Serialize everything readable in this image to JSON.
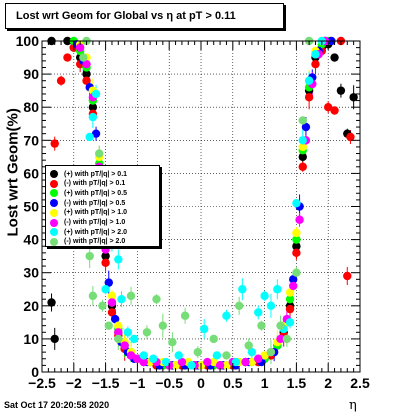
{
  "title": "Lost wrt Geom for Global vs  η at pT > 0.11",
  "ylabel": "Lost wrt Geom(%)",
  "xlabel": "η",
  "datestamp": "Sat Oct 17 20:20:58 2020",
  "chart_data": {
    "type": "scatter",
    "xlim": [
      -2.5,
      2.5
    ],
    "ylim": [
      0,
      100
    ],
    "x_ticks": [
      "−2.5",
      "−2",
      "−1.5",
      "−1",
      "−0.5",
      "0",
      "0.5",
      "1",
      "1.5",
      "2",
      "2.5"
    ],
    "y_ticks": [
      "0",
      "10",
      "20",
      "30",
      "40",
      "50",
      "60",
      "70",
      "80",
      "90",
      "100"
    ],
    "grid": true,
    "legend_position": "left-middle",
    "series": [
      {
        "name": "(+) with pT/|q| > 0.1",
        "color": "#000000",
        "points": [
          [
            -2.35,
            100
          ],
          [
            -2.3,
            10
          ],
          [
            -2.35,
            21
          ],
          [
            -2.1,
            100
          ],
          [
            -2.0,
            98
          ],
          [
            -1.9,
            95
          ],
          [
            -1.8,
            90
          ],
          [
            -1.7,
            80
          ],
          [
            -1.6,
            60
          ],
          [
            -1.5,
            35
          ],
          [
            -1.4,
            20
          ],
          [
            -1.3,
            12
          ],
          [
            -1.2,
            7
          ],
          [
            -1.1,
            5
          ],
          [
            -1.0,
            4
          ],
          [
            -0.9,
            3
          ],
          [
            -0.8,
            3
          ],
          [
            -0.7,
            2
          ],
          [
            -0.6,
            2
          ],
          [
            -0.5,
            2
          ],
          [
            -0.3,
            2
          ],
          [
            -0.1,
            2
          ],
          [
            0.1,
            2
          ],
          [
            0.3,
            2
          ],
          [
            0.5,
            2
          ],
          [
            0.7,
            3
          ],
          [
            0.9,
            3
          ],
          [
            1.0,
            4
          ],
          [
            1.1,
            5
          ],
          [
            1.2,
            8
          ],
          [
            1.3,
            12
          ],
          [
            1.4,
            20
          ],
          [
            1.5,
            38
          ],
          [
            1.6,
            65
          ],
          [
            1.7,
            85
          ],
          [
            1.8,
            95
          ],
          [
            1.9,
            98
          ],
          [
            2.0,
            99
          ],
          [
            2.1,
            95
          ],
          [
            2.2,
            85
          ],
          [
            2.3,
            72
          ],
          [
            2.4,
            83
          ]
        ]
      },
      {
        "name": "(-) with pT/|q| > 0.1",
        "color": "#ff0000",
        "points": [
          [
            -2.3,
            69
          ],
          [
            -2.2,
            88
          ],
          [
            -2.1,
            95
          ],
          [
            -2.0,
            98
          ],
          [
            -1.9,
            93
          ],
          [
            -1.8,
            88
          ],
          [
            -1.7,
            78
          ],
          [
            -1.6,
            58
          ],
          [
            -1.5,
            33
          ],
          [
            -1.4,
            18
          ],
          [
            -1.3,
            11
          ],
          [
            -1.2,
            7
          ],
          [
            -1.1,
            5
          ],
          [
            -1.0,
            4
          ],
          [
            -0.9,
            3
          ],
          [
            -0.7,
            2
          ],
          [
            -0.5,
            2
          ],
          [
            -0.3,
            2
          ],
          [
            -0.1,
            2
          ],
          [
            0.1,
            2
          ],
          [
            0.3,
            2
          ],
          [
            0.5,
            2
          ],
          [
            0.7,
            3
          ],
          [
            0.9,
            3
          ],
          [
            1.1,
            5
          ],
          [
            1.3,
            11
          ],
          [
            1.4,
            19
          ],
          [
            1.5,
            36
          ],
          [
            1.6,
            62
          ],
          [
            1.7,
            83
          ],
          [
            1.8,
            93
          ],
          [
            1.9,
            97
          ],
          [
            2.0,
            80
          ],
          [
            2.1,
            79
          ],
          [
            2.2,
            100
          ],
          [
            2.3,
            29
          ],
          [
            2.35,
            71
          ]
        ]
      },
      {
        "name": "(+) with pT/|q| > 0.5",
        "color": "#00ff00",
        "points": [
          [
            -2.0,
            100
          ],
          [
            -1.9,
            97
          ],
          [
            -1.8,
            92
          ],
          [
            -1.7,
            82
          ],
          [
            -1.6,
            63
          ],
          [
            -1.5,
            38
          ],
          [
            -1.4,
            21
          ],
          [
            -1.3,
            13
          ],
          [
            -1.2,
            8
          ],
          [
            -1.1,
            6
          ],
          [
            -1.0,
            4
          ],
          [
            -0.8,
            3
          ],
          [
            -0.6,
            2
          ],
          [
            -0.4,
            2
          ],
          [
            -0.2,
            2
          ],
          [
            0.0,
            2
          ],
          [
            0.2,
            2
          ],
          [
            0.4,
            2
          ],
          [
            0.6,
            3
          ],
          [
            0.8,
            3
          ],
          [
            1.0,
            4
          ],
          [
            1.2,
            8
          ],
          [
            1.4,
            22
          ],
          [
            1.5,
            40
          ],
          [
            1.6,
            67
          ],
          [
            1.7,
            86
          ],
          [
            1.8,
            96
          ],
          [
            1.9,
            99
          ],
          [
            2.0,
            100
          ]
        ]
      },
      {
        "name": "(-) with pT/|q| > 0.5",
        "color": "#0000ff",
        "points": [
          [
            -1.95,
            99
          ],
          [
            -1.85,
            94
          ],
          [
            -1.75,
            86
          ],
          [
            -1.65,
            72
          ],
          [
            -1.55,
            48
          ],
          [
            -1.45,
            27
          ],
          [
            -1.35,
            16
          ],
          [
            -1.25,
            9
          ],
          [
            -1.15,
            6
          ],
          [
            -1.05,
            4
          ],
          [
            -0.85,
            3
          ],
          [
            -0.65,
            2
          ],
          [
            -0.45,
            2
          ],
          [
            -0.25,
            2
          ],
          [
            -0.05,
            2
          ],
          [
            0.15,
            2
          ],
          [
            0.35,
            2
          ],
          [
            0.55,
            2
          ],
          [
            0.75,
            3
          ],
          [
            0.95,
            3
          ],
          [
            1.15,
            6
          ],
          [
            1.35,
            15
          ],
          [
            1.45,
            28
          ],
          [
            1.55,
            50
          ],
          [
            1.65,
            74
          ],
          [
            1.75,
            89
          ],
          [
            1.85,
            97
          ],
          [
            1.95,
            100
          ],
          [
            2.05,
            100
          ]
        ]
      },
      {
        "name": "(+) with pT/|q| > 1.0",
        "color": "#ffff00",
        "points": [
          [
            -1.9,
            99
          ],
          [
            -1.8,
            95
          ],
          [
            -1.7,
            85
          ],
          [
            -1.6,
            65
          ],
          [
            -1.5,
            40
          ],
          [
            -1.4,
            23
          ],
          [
            -1.3,
            14
          ],
          [
            -1.2,
            9
          ],
          [
            -1.1,
            6
          ],
          [
            -1.0,
            4
          ],
          [
            -0.8,
            3
          ],
          [
            -0.6,
            3
          ],
          [
            -0.4,
            2
          ],
          [
            -0.2,
            3
          ],
          [
            0.0,
            2
          ],
          [
            0.2,
            3
          ],
          [
            0.4,
            2
          ],
          [
            0.6,
            3
          ],
          [
            0.8,
            3
          ],
          [
            1.0,
            5
          ],
          [
            1.2,
            9
          ],
          [
            1.3,
            14
          ],
          [
            1.4,
            24
          ],
          [
            1.5,
            42
          ],
          [
            1.6,
            68
          ],
          [
            1.7,
            88
          ],
          [
            1.8,
            97
          ],
          [
            1.9,
            100
          ]
        ]
      },
      {
        "name": "(-) with pT/|q| > 1.0",
        "color": "#ff00ff",
        "points": [
          [
            -1.9,
            98
          ],
          [
            -1.8,
            93
          ],
          [
            -1.7,
            83
          ],
          [
            -1.6,
            62
          ],
          [
            -1.5,
            37
          ],
          [
            -1.4,
            21
          ],
          [
            -1.3,
            12
          ],
          [
            -1.2,
            8
          ],
          [
            -1.1,
            5
          ],
          [
            -1.0,
            4
          ],
          [
            -0.9,
            3
          ],
          [
            -0.7,
            3
          ],
          [
            -0.5,
            2
          ],
          [
            -0.3,
            3
          ],
          [
            -0.1,
            2
          ],
          [
            0.1,
            3
          ],
          [
            0.3,
            2
          ],
          [
            0.5,
            3
          ],
          [
            0.7,
            3
          ],
          [
            0.9,
            4
          ],
          [
            1.1,
            6
          ],
          [
            1.25,
            10
          ],
          [
            1.35,
            16
          ],
          [
            1.45,
            26
          ],
          [
            1.55,
            46
          ],
          [
            1.65,
            70
          ],
          [
            1.75,
            87
          ],
          [
            1.85,
            96
          ],
          [
            1.95,
            100
          ]
        ]
      },
      {
        "name": "(+) with pT/|q| > 2.0",
        "color": "#00ffff",
        "points": [
          [
            -1.75,
            71
          ],
          [
            -1.7,
            77
          ],
          [
            -1.65,
            84
          ],
          [
            -1.6,
            52
          ],
          [
            -1.5,
            25
          ],
          [
            -1.4,
            40
          ],
          [
            -1.3,
            34
          ],
          [
            -1.25,
            22
          ],
          [
            -1.15,
            12
          ],
          [
            -1.05,
            10
          ],
          [
            -0.9,
            5
          ],
          [
            -0.75,
            4
          ],
          [
            -0.55,
            3
          ],
          [
            -0.35,
            5
          ],
          [
            -0.15,
            2
          ],
          [
            0.05,
            13
          ],
          [
            0.25,
            5
          ],
          [
            0.4,
            17
          ],
          [
            0.55,
            3
          ],
          [
            0.65,
            25
          ],
          [
            0.8,
            6
          ],
          [
            0.9,
            18
          ],
          [
            1.0,
            23
          ],
          [
            1.1,
            20
          ],
          [
            1.2,
            25
          ],
          [
            1.3,
            13
          ],
          [
            1.4,
            15
          ],
          [
            1.5,
            51
          ],
          [
            1.6,
            70
          ],
          [
            1.7,
            88
          ],
          [
            1.8,
            96
          ],
          [
            1.9,
            100
          ]
        ]
      },
      {
        "name": "(-) with pT/|q| > 2.0",
        "color": "#77dd77",
        "points": [
          [
            -1.85,
            95
          ],
          [
            -1.8,
            100
          ],
          [
            -1.75,
            35
          ],
          [
            -1.7,
            23
          ],
          [
            -1.6,
            66
          ],
          [
            -1.55,
            20
          ],
          [
            -1.45,
            14
          ],
          [
            -1.3,
            10
          ],
          [
            -1.1,
            23
          ],
          [
            -0.85,
            12
          ],
          [
            -0.7,
            22
          ],
          [
            -0.6,
            14
          ],
          [
            -0.45,
            9
          ],
          [
            -0.25,
            17
          ],
          [
            -0.05,
            6
          ],
          [
            0.2,
            10
          ],
          [
            0.4,
            5
          ],
          [
            0.6,
            20
          ],
          [
            0.75,
            8
          ],
          [
            0.95,
            14
          ],
          [
            1.1,
            6
          ],
          [
            1.25,
            14
          ],
          [
            1.35,
            10
          ],
          [
            1.5,
            30
          ],
          [
            1.6,
            76
          ],
          [
            1.7,
            100
          ]
        ]
      }
    ]
  }
}
